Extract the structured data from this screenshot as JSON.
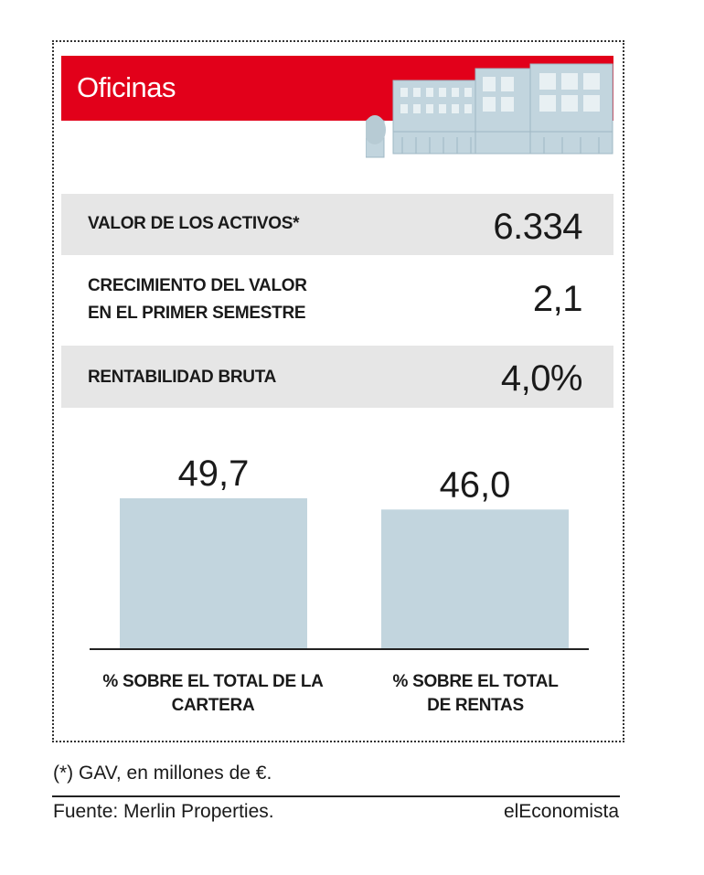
{
  "header": {
    "title": "Oficinas"
  },
  "metrics": [
    {
      "label": "VALOR DE LOS ACTIVOS*",
      "value": "6.334"
    },
    {
      "label_line1": "CRECIMIENTO DEL VALOR",
      "label_line2": "EN EL PRIMER SEMESTRE",
      "value": "2,1"
    },
    {
      "label": "RENTABILIDAD BRUTA",
      "value": "4,0%"
    }
  ],
  "chart_data": {
    "type": "bar",
    "categories": [
      "% SOBRE EL TOTAL DE LA CARTERA",
      "% SOBRE EL TOTAL DE RENTAS"
    ],
    "category_lines": [
      [
        "% SOBRE EL TOTAL DE LA",
        "CARTERA"
      ],
      [
        "% SOBRE EL TOTAL",
        "DE RENTAS"
      ]
    ],
    "values": [
      49.7,
      46.0
    ],
    "value_labels": [
      "49,7",
      "46,0"
    ],
    "bar_color": "#c2d5de",
    "grid": false,
    "legend": "none"
  },
  "footer": {
    "note": "(*) GAV, en millones de €.",
    "source": "Fuente: Merlin Properties.",
    "brand": "elEconomista"
  },
  "colors": {
    "accent": "#e2001a",
    "shade": "#e6e6e6",
    "building": "#c2d5de"
  }
}
